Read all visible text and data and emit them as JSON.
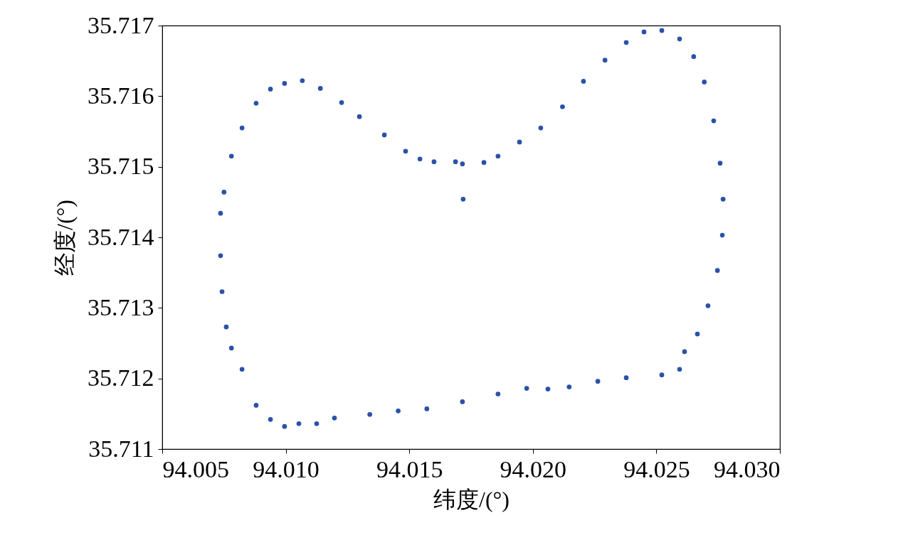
{
  "chart_data": {
    "type": "scatter",
    "xlabel": "纬度/(°)",
    "ylabel": "经度/(°)",
    "xlim": [
      94.005,
      94.03
    ],
    "ylim": [
      35.711,
      35.717
    ],
    "xticks": [
      94.005,
      {
        "value": 94.01,
        "label": "94.010"
      },
      94.015,
      {
        "value": 94.02,
        "label": "94.020"
      },
      94.025,
      {
        "value": 94.03,
        "label": "94.030"
      }
    ],
    "yticks": [
      35.711,
      35.712,
      35.713,
      35.714,
      35.715,
      35.716,
      35.717
    ],
    "grid": false,
    "marker": "circle",
    "series": [
      {
        "color": "#2a52a8",
        "x": [
          94.01067,
          94.00995,
          94.00938,
          94.0088,
          94.00823,
          94.0078,
          94.0075,
          94.00736,
          94.00736,
          94.00742,
          94.00759,
          94.0078,
          94.00823,
          94.0088,
          94.00938,
          94.00995,
          94.01053,
          94.01125,
          94.01197,
          94.0134,
          94.01455,
          94.01571,
          94.01715,
          94.01859,
          94.01975,
          94.02061,
          94.02147,
          94.02263,
          94.02378,
          94.02522,
          94.02594,
          94.02614,
          94.02666,
          94.02709,
          94.02747,
          94.02767,
          94.0277,
          94.02758,
          94.02732,
          94.02694,
          94.02651,
          94.02594,
          94.02522,
          94.0245,
          94.02378,
          94.02292,
          94.02205,
          94.0212,
          94.02032,
          94.01946,
          94.01859,
          94.01802,
          94.01715,
          94.01687,
          94.016,
          94.01543,
          94.01485,
          94.01399,
          94.01298,
          94.01226,
          94.0114,
          94.01718
        ],
        "values": [
          35.71622,
          35.71618,
          35.7161,
          35.7159,
          35.71555,
          35.71515,
          35.71464,
          35.71434,
          35.71374,
          35.71323,
          35.71273,
          35.71243,
          35.71213,
          35.71162,
          35.71142,
          35.71132,
          35.71136,
          35.71136,
          35.71144,
          35.71149,
          35.71154,
          35.71157,
          35.71167,
          35.71178,
          35.71186,
          35.71185,
          35.71188,
          35.71196,
          35.71201,
          35.71205,
          35.71213,
          35.71238,
          35.71263,
          35.71303,
          35.71353,
          35.71403,
          35.71454,
          35.71505,
          35.71565,
          35.7162,
          35.71656,
          35.71681,
          35.71693,
          35.71691,
          35.71676,
          35.71651,
          35.71621,
          35.71585,
          35.71555,
          35.71535,
          35.71515,
          35.71506,
          35.71504,
          35.71507,
          35.71507,
          35.71511,
          35.71522,
          35.71545,
          35.71571,
          35.71591,
          35.71611,
          35.71454
        ]
      }
    ]
  }
}
